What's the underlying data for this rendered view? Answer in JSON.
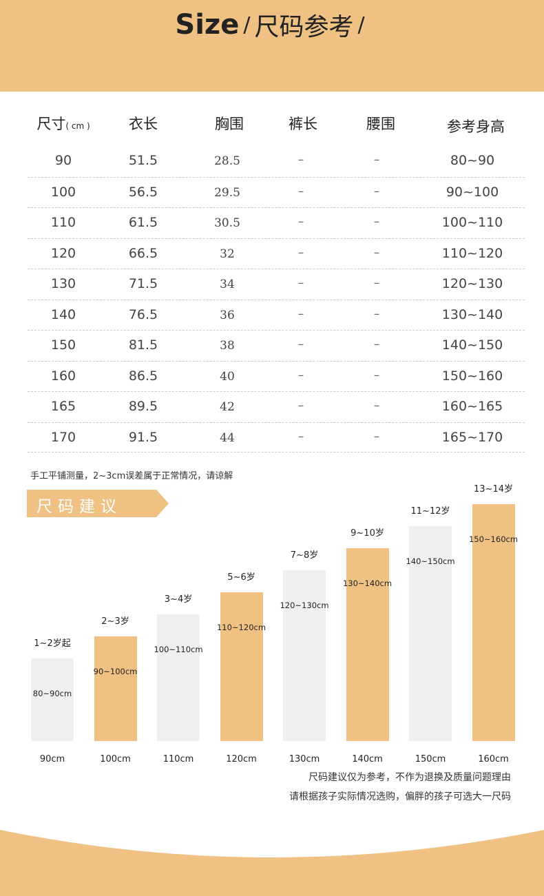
{
  "header": {
    "title_en": "Size",
    "slash": "/",
    "title_cn": "尺码参考",
    "trailing_slash": "/",
    "bg_color": "#efc183"
  },
  "table": {
    "headers": {
      "size": "尺寸",
      "size_unit": "( cm )",
      "length": "衣长",
      "chest": "胸围",
      "pants": "裤长",
      "waist": "腰围",
      "height": "参考身高"
    },
    "rows": [
      {
        "size": "90",
        "length": "51.5",
        "chest": "28.5",
        "pants": "–",
        "waist": "–",
        "height": "80~90"
      },
      {
        "size": "100",
        "length": "56.5",
        "chest": "29.5",
        "pants": "–",
        "waist": "–",
        "height": "90~100"
      },
      {
        "size": "110",
        "length": "61.5",
        "chest": "30.5",
        "pants": "–",
        "waist": "–",
        "height": "100~110"
      },
      {
        "size": "120",
        "length": "66.5",
        "chest": "32",
        "pants": "–",
        "waist": "–",
        "height": "110~120"
      },
      {
        "size": "130",
        "length": "71.5",
        "chest": "34",
        "pants": "–",
        "waist": "–",
        "height": "120~130"
      },
      {
        "size": "140",
        "length": "76.5",
        "chest": "36",
        "pants": "–",
        "waist": "–",
        "height": "130~140"
      },
      {
        "size": "150",
        "length": "81.5",
        "chest": "38",
        "pants": "–",
        "waist": "–",
        "height": "140~150"
      },
      {
        "size": "160",
        "length": "86.5",
        "chest": "40",
        "pants": "–",
        "waist": "–",
        "height": "150~160"
      },
      {
        "size": "165",
        "length": "89.5",
        "chest": "42",
        "pants": "–",
        "waist": "–",
        "height": "160~165"
      },
      {
        "size": "170",
        "length": "91.5",
        "chest": "44",
        "pants": "–",
        "waist": "–",
        "height": "165~170"
      }
    ]
  },
  "note_measure": "手工平铺测量，2~3cm误差属于正常情况，请谅解",
  "advice": {
    "tag_label": "尺码建议",
    "tag_color": "#efc183",
    "bar_gray": "#f0f0f0",
    "bar_gold": "#efc183"
  },
  "chart_data": {
    "type": "bar",
    "categories": [
      "90cm",
      "100cm",
      "110cm",
      "120cm",
      "130cm",
      "140cm",
      "150cm",
      "160cm"
    ],
    "ages": [
      "1~2岁起",
      "2~3岁",
      "3~4岁",
      "5~6岁",
      "7~8岁",
      "9~10岁",
      "11~12岁",
      "13~14岁"
    ],
    "ranges": [
      "80~90cm",
      "90~100cm",
      "100~110cm",
      "110~120cm",
      "120~130cm",
      "130~140cm",
      "140~150cm",
      "150~160cm"
    ],
    "values": [
      90,
      100,
      110,
      120,
      130,
      140,
      150,
      160
    ],
    "colors": [
      "gray",
      "gold",
      "gray",
      "gold",
      "gray",
      "gold",
      "gray",
      "gold"
    ]
  },
  "note_advice": [
    "尺码建议仅为参考，不作为退换及质量问题理由",
    "请根据孩子实际情况选购，偏胖的孩子可选大一尺码"
  ]
}
